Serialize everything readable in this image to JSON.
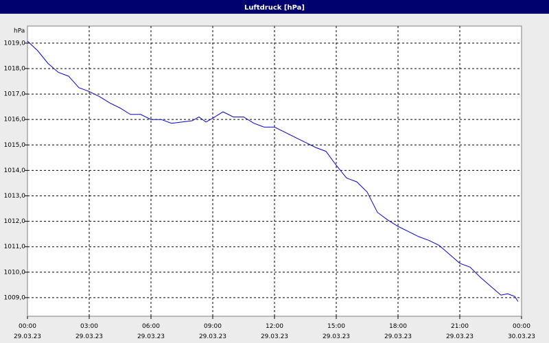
{
  "chart_data": {
    "type": "line",
    "title": "Luftdruck [hPa]",
    "y_label": "hPa",
    "grid": true,
    "xlim": [
      0,
      24
    ],
    "ylim": [
      1008.27,
      1019.67
    ],
    "xticks": [
      {
        "value": 0,
        "label": "00:00\n29.03.23"
      },
      {
        "value": 3,
        "label": "03:00\n29.03.23"
      },
      {
        "value": 6,
        "label": "06:00\n29.03.23"
      },
      {
        "value": 9,
        "label": "09:00\n29.03.23"
      },
      {
        "value": 12,
        "label": "12:00\n29.03.23"
      },
      {
        "value": 15,
        "label": "15:00\n29.03.23"
      },
      {
        "value": 18,
        "label": "18:00\n29.03.23"
      },
      {
        "value": 21,
        "label": "21:00\n29.03.23"
      },
      {
        "value": 24,
        "label": "00:00\n30.03.23"
      }
    ],
    "yticks": [
      {
        "value": 1009,
        "label": "1009,0"
      },
      {
        "value": 1010,
        "label": "1010,0"
      },
      {
        "value": 1011,
        "label": "1011,0"
      },
      {
        "value": 1012,
        "label": "1012,0"
      },
      {
        "value": 1013,
        "label": "1013,0"
      },
      {
        "value": 1014,
        "label": "1014,0"
      },
      {
        "value": 1015,
        "label": "1015,0"
      },
      {
        "value": 1016,
        "label": "1016,0"
      },
      {
        "value": 1017,
        "label": "1017,0"
      },
      {
        "value": 1018,
        "label": "1018,0"
      },
      {
        "value": 1019,
        "label": "1019,0"
      }
    ],
    "x": [
      0,
      0.5,
      1,
      1.5,
      2,
      2.5,
      3,
      3.5,
      4,
      4.5,
      5,
      5.5,
      6,
      6.5,
      7,
      7.5,
      8,
      8.33,
      8.67,
      9,
      9.5,
      10,
      10.5,
      11,
      11.5,
      12,
      12.5,
      13,
      13.5,
      14,
      14.5,
      15,
      15.5,
      16,
      16.5,
      17,
      17.5,
      18,
      18.5,
      19,
      19.5,
      20,
      20.5,
      21,
      21.5,
      22,
      22.5,
      23,
      23.33,
      23.67,
      23.83
    ],
    "series": [
      {
        "name": "Luftdruck",
        "color": "#0000cc",
        "values": [
          1019.08,
          1018.7,
          1018.2,
          1017.85,
          1017.7,
          1017.25,
          1017.1,
          1016.9,
          1016.65,
          1016.45,
          1016.2,
          1016.2,
          1016.0,
          1016.0,
          1015.85,
          1015.9,
          1015.95,
          1016.1,
          1015.9,
          1016.05,
          1016.3,
          1016.1,
          1016.1,
          1015.85,
          1015.7,
          1015.7,
          1015.5,
          1015.3,
          1015.1,
          1014.9,
          1014.75,
          1014.2,
          1013.7,
          1013.55,
          1013.15,
          1012.35,
          1012.05,
          1011.8,
          1011.6,
          1011.4,
          1011.25,
          1011.05,
          1010.7,
          1010.35,
          1010.2,
          1009.8,
          1009.45,
          1009.1,
          1009.15,
          1009.05,
          1008.85
        ]
      }
    ]
  }
}
